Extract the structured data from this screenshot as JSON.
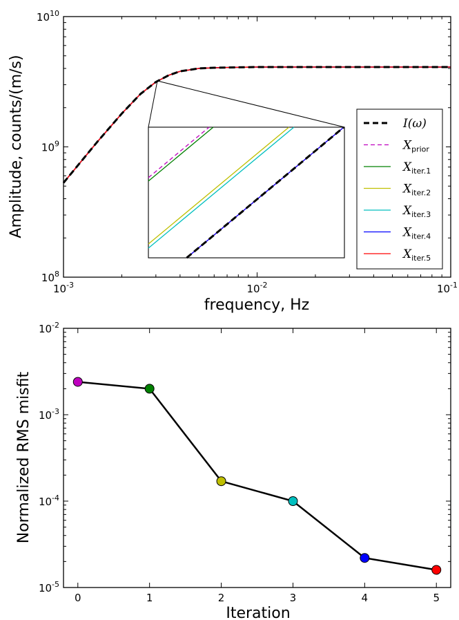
{
  "chart_data": [
    {
      "type": "line",
      "xlabel": "frequency, Hz",
      "ylabel": "Amplitude, counts/(m/s)",
      "xscale": "log",
      "yscale": "log",
      "xlim": [
        0.001,
        0.1
      ],
      "ylim": [
        100000000,
        10000000000
      ],
      "x_tick_labels": [
        {
          "base": "10",
          "exp": "-3",
          "value": 0.001
        },
        {
          "base": "10",
          "exp": "-2",
          "value": 0.01
        },
        {
          "base": "10",
          "exp": "-1",
          "value": 0.1
        }
      ],
      "y_tick_labels": [
        {
          "base": "10",
          "exp": "8",
          "value": 100000000
        },
        {
          "base": "10",
          "exp": "9",
          "value": 1000000000
        },
        {
          "base": "10",
          "exp": "10",
          "value": 10000000000
        }
      ],
      "grid": false,
      "legend_position": "right",
      "x": [
        0.001,
        0.0015,
        0.002,
        0.0025,
        0.003,
        0.0035,
        0.004,
        0.005,
        0.006,
        0.008,
        0.01,
        0.02,
        0.05,
        0.1
      ],
      "series": [
        {
          "name": "I(ω)",
          "color": "#000000",
          "dash": "dashed",
          "values": [
            530000000,
            1100000000,
            1800000000,
            2550000000,
            3150000000,
            3550000000,
            3800000000,
            4000000000,
            4050000000,
            4080000000,
            4100000000,
            4100000000,
            4100000000,
            4100000000
          ]
        },
        {
          "name": "X_prior",
          "color": "#bf00bf",
          "dash": "dashed",
          "values": [
            530000000,
            1100000000,
            1800000000,
            2550000000,
            3150000000,
            3550000000,
            3800000000,
            4000000000,
            4050000000,
            4080000000,
            4100000000,
            4100000000,
            4100000000,
            4100000000
          ]
        },
        {
          "name": "X_iter.1",
          "color": "#008000",
          "dash": "solid",
          "values": [
            530000000,
            1100000000,
            1800000000,
            2550000000,
            3150000000,
            3550000000,
            3800000000,
            4000000000,
            4050000000,
            4080000000,
            4100000000,
            4100000000,
            4100000000,
            4100000000
          ]
        },
        {
          "name": "X_iter.2",
          "color": "#bfbf00",
          "dash": "solid",
          "values": [
            530000000,
            1100000000,
            1800000000,
            2550000000,
            3150000000,
            3550000000,
            3800000000,
            4000000000,
            4050000000,
            4080000000,
            4100000000,
            4100000000,
            4100000000,
            4100000000
          ]
        },
        {
          "name": "X_iter.3",
          "color": "#00bfbf",
          "dash": "solid",
          "values": [
            530000000,
            1100000000,
            1800000000,
            2550000000,
            3150000000,
            3550000000,
            3800000000,
            4000000000,
            4050000000,
            4080000000,
            4100000000,
            4100000000,
            4100000000,
            4100000000
          ]
        },
        {
          "name": "X_iter.4",
          "color": "#0000ff",
          "dash": "solid",
          "values": [
            530000000,
            1100000000,
            1800000000,
            2550000000,
            3150000000,
            3550000000,
            3800000000,
            4000000000,
            4050000000,
            4080000000,
            4100000000,
            4100000000,
            4100000000,
            4100000000
          ]
        },
        {
          "name": "X_iter.5",
          "color": "#ff0000",
          "dash": "solid",
          "values": [
            530000000,
            1100000000,
            1800000000,
            2550000000,
            3150000000,
            3550000000,
            3800000000,
            4000000000,
            4050000000,
            4080000000,
            4100000000,
            4100000000,
            4100000000,
            4100000000
          ]
        }
      ],
      "legend": [
        {
          "sym": "I",
          "sub": "",
          "paren": "(ω)",
          "color": "#000000",
          "dash": "dashed"
        },
        {
          "sym": "X",
          "sub": "prior",
          "paren": "",
          "color": "#bf00bf",
          "dash": "dashed"
        },
        {
          "sym": "X",
          "sub": "iter.1",
          "paren": "",
          "color": "#008000",
          "dash": "solid"
        },
        {
          "sym": "X",
          "sub": "iter.2",
          "paren": "",
          "color": "#bfbf00",
          "dash": "solid"
        },
        {
          "sym": "X",
          "sub": "iter.3",
          "paren": "",
          "color": "#00bfbf",
          "dash": "solid"
        },
        {
          "sym": "X",
          "sub": "iter.4",
          "paren": "",
          "color": "#0000ff",
          "dash": "solid"
        },
        {
          "sym": "X",
          "sub": "iter.5",
          "paren": "",
          "color": "#ff0000",
          "dash": "solid"
        }
      ],
      "inset": {
        "type": "line",
        "note": "zoomed view near f ≈ 0.003 Hz, all series as parallel lines",
        "series_order": [
          "X_prior",
          "X_iter.1",
          "X_iter.2",
          "X_iter.3",
          "I(ω)",
          "X_iter.4",
          "X_iter.5"
        ]
      }
    },
    {
      "type": "line",
      "xlabel": "Iteration",
      "ylabel": "Normalized RMS misfit",
      "xscale": "linear",
      "yscale": "log",
      "xlim": [
        -0.2,
        5.2
      ],
      "ylim": [
        1e-05,
        0.01
      ],
      "x_tick_labels": [
        "0",
        "1",
        "2",
        "3",
        "4",
        "5"
      ],
      "y_tick_labels": [
        {
          "base": "10",
          "exp": "-5",
          "value": 1e-05
        },
        {
          "base": "10",
          "exp": "-4",
          "value": 0.0001
        },
        {
          "base": "10",
          "exp": "-3",
          "value": 0.001
        },
        {
          "base": "10",
          "exp": "-2",
          "value": 0.01
        }
      ],
      "grid": false,
      "x": [
        0,
        1,
        2,
        3,
        4,
        5
      ],
      "values": [
        0.0024,
        0.002,
        0.00017,
        0.0001,
        2.2e-05,
        1.6e-05
      ],
      "line_color": "#000000",
      "marker_colors": [
        "#bf00bf",
        "#008000",
        "#bfbf00",
        "#00bfbf",
        "#0000ff",
        "#ff0000"
      ]
    }
  ]
}
